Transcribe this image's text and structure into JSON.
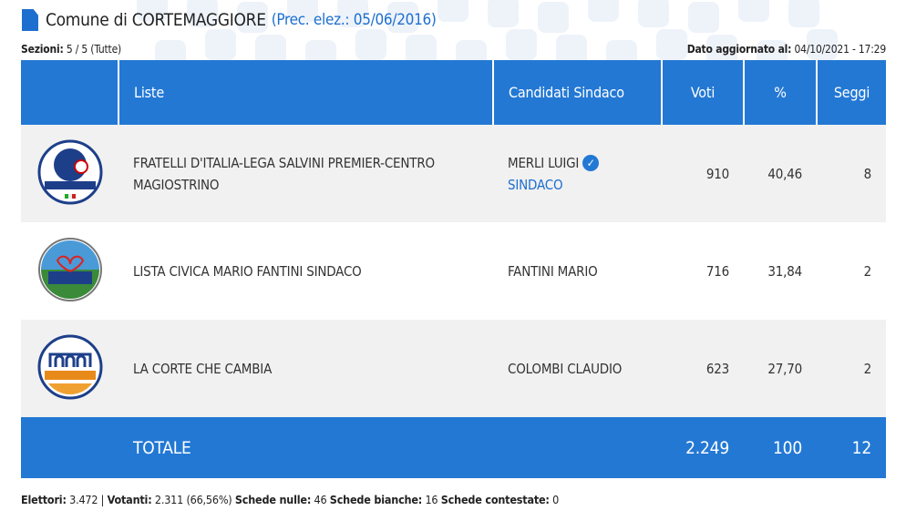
{
  "header": {
    "icon": "document-icon",
    "title": "Comune di CORTEMAGGIORE",
    "prec": "(Prec. elez.: 05/06/2016)"
  },
  "sezioni": {
    "label": "Sezioni:",
    "value": "5 / 5 (Tutte)"
  },
  "updated": {
    "label": "Dato aggiornato al:",
    "value": "04/10/2021 - 17:29"
  },
  "table": {
    "columns": [
      "Liste",
      "Candidati Sindaco",
      "Voti",
      "%",
      "Seggi"
    ],
    "rows": [
      {
        "logo": "CENTRODESTRA CORTEMAGGIORE",
        "lista": "FRATELLI D'ITALIA-LEGA SALVINI PREMIER-CENTRO MAGIOSTRINO",
        "candidato": "MERLI LUIGI",
        "sub": "SINDACO",
        "elected": true,
        "voti": "910",
        "perc": "40,46",
        "seggi": "8"
      },
      {
        "logo": "Lista Civica Mario FANTINI Sindaco",
        "lista": "LISTA CIVICA MARIO FANTINI SINDACO",
        "candidato": "FANTINI MARIO",
        "voti": "716",
        "perc": "31,84",
        "seggi": "2"
      },
      {
        "logo": "La Corte che cambia",
        "lista": "LA CORTE CHE CAMBIA",
        "candidato": "COLOMBI CLAUDIO",
        "voti": "623",
        "perc": "27,70",
        "seggi": "2"
      }
    ],
    "total": {
      "label": "TOTALE",
      "voti": "2.249",
      "perc": "100",
      "seggi": "12"
    }
  },
  "footer": {
    "elettori_l": "Elettori:",
    "elettori": "3.472",
    "votanti_l": "Votanti:",
    "votanti": "2.311 (66,56%)",
    "nulle_l": "Schede nulle:",
    "nulle": "46",
    "bianche_l": "Schede bianche:",
    "bianche": "16",
    "contestate_l": "Schede contestate:",
    "contestate": "0"
  },
  "colors": {
    "accent": "#2378d4",
    "row_alt": "#f1f1f1"
  }
}
